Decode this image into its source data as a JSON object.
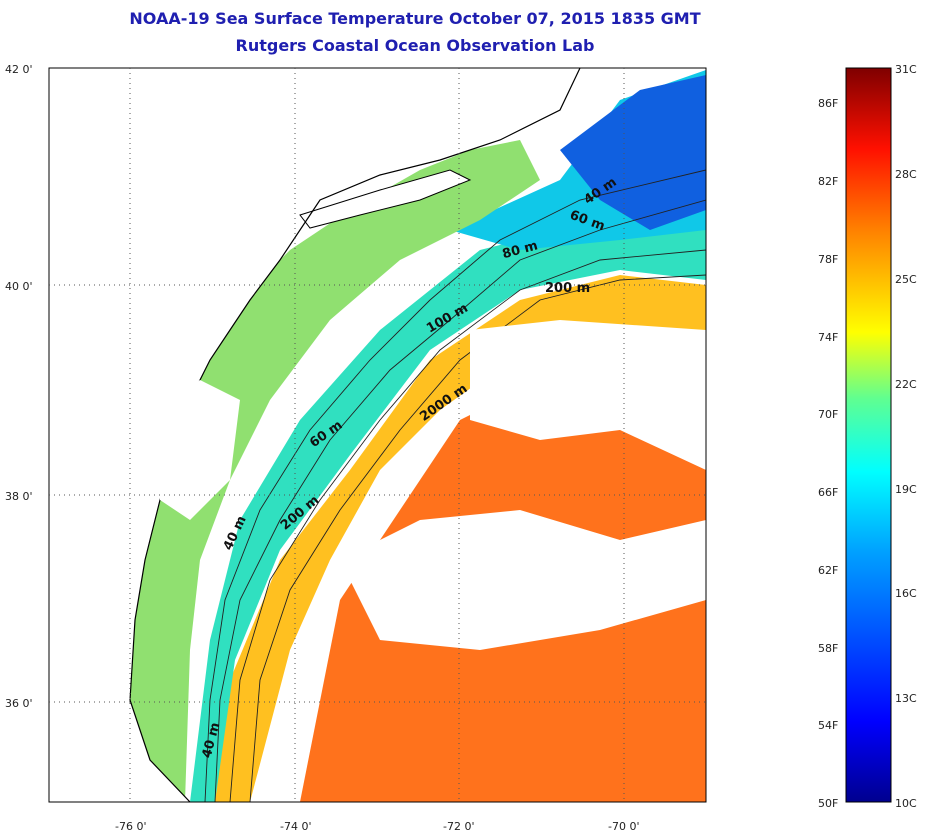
{
  "title": {
    "line1": "NOAA-19 Sea Surface Temperature October 07, 2015 1835 GMT",
    "line2": "Rutgers Coastal Ocean Observation Lab"
  },
  "map": {
    "lat_labels": [
      "42 0'",
      "40 0'",
      "38 0'",
      "36 0'"
    ],
    "lon_labels": [
      "-76 0'",
      "-74 0'",
      "-72 0'",
      "-70 0'"
    ],
    "depth_contour_labels": [
      "40 m",
      "60 m",
      "80 m",
      "100 m",
      "200 m",
      "2000 m",
      "60 m",
      "200 m",
      "40 m",
      "40 m"
    ],
    "colors": {
      "land": "#ffffff",
      "cloud": "#ffffff",
      "coast": "#000000",
      "contour": "#222222"
    }
  },
  "colorbar": {
    "fahrenheit_labels": [
      "86F",
      "82F",
      "78F",
      "74F",
      "70F",
      "66F",
      "62F",
      "58F",
      "54F",
      "50F"
    ],
    "celsius_labels": [
      "31C",
      "28C",
      "25C",
      "22C",
      "19C",
      "16C",
      "13C",
      "10C"
    ],
    "colormap": [
      "#7f0000",
      "#ff0000",
      "#ff8000",
      "#ffff00",
      "#80ff80",
      "#00ffff",
      "#0080ff",
      "#0000ff",
      "#00008f"
    ]
  }
}
